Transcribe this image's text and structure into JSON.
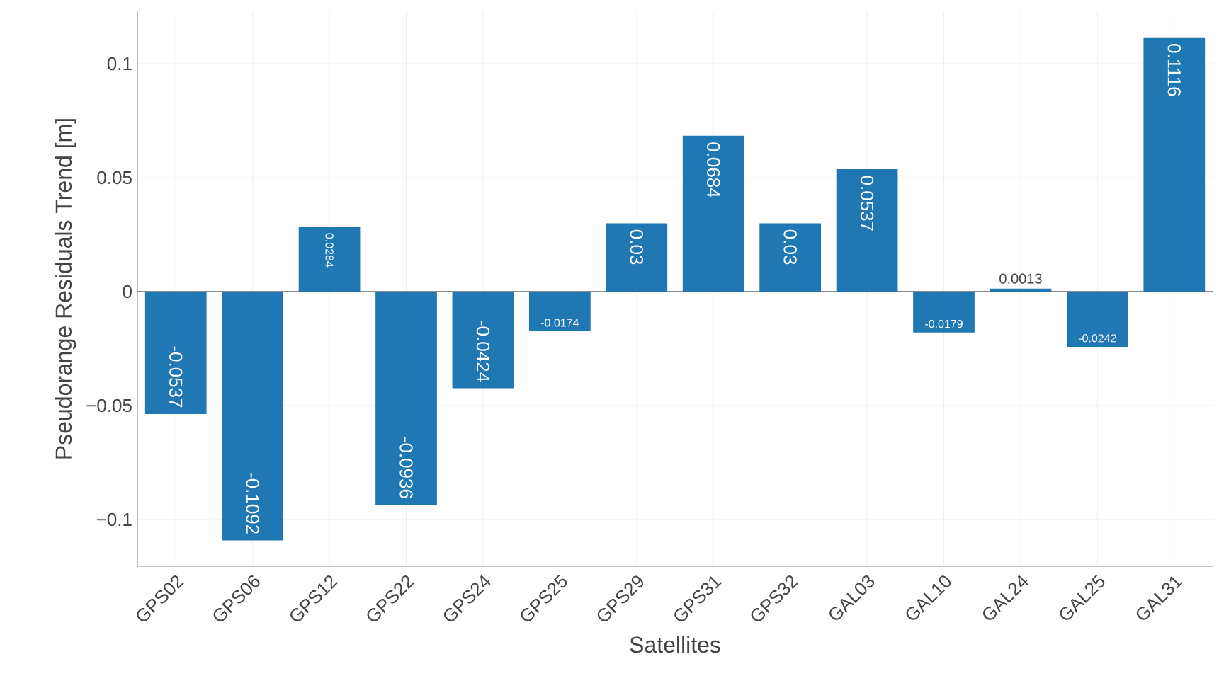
{
  "chart_data": {
    "type": "bar",
    "xlabel": "Satellites",
    "ylabel": "Pseudorange Residuals Trend [m]",
    "categories": [
      "GPS02",
      "GPS06",
      "GPS12",
      "GPS22",
      "GPS24",
      "GPS25",
      "GPS29",
      "GPS31",
      "GPS32",
      "GAL03",
      "GAL10",
      "GAL24",
      "GAL25",
      "GAL31"
    ],
    "values": [
      -0.0537,
      -0.1092,
      0.0284,
      -0.0936,
      -0.0424,
      -0.0174,
      0.03,
      0.0684,
      0.03,
      0.0537,
      -0.0179,
      0.0013,
      -0.0242,
      0.1116
    ],
    "color": "#1f77b4",
    "ylim": [
      -0.1205,
      0.123
    ],
    "yticks": [
      {
        "value": -0.1,
        "label": "−0.1"
      },
      {
        "value": -0.05,
        "label": "−0.05"
      },
      0,
      0.05,
      0.1
    ],
    "grid": true,
    "data_labels": true
  }
}
